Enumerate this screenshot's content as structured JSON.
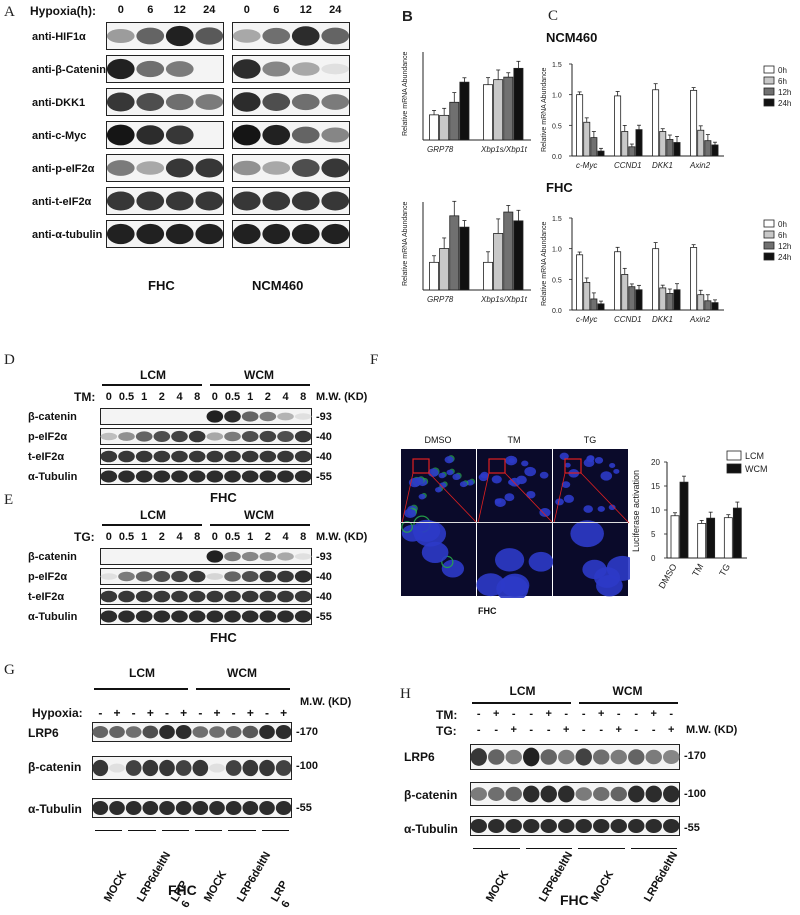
{
  "panel_labels": {
    "a": "A",
    "b": "B",
    "c": "C",
    "d": "D",
    "e": "E",
    "f": "F",
    "g": "G",
    "h": "H"
  },
  "panel_a": {
    "header_label": "Hypoxia(h):",
    "times": [
      "0",
      "6",
      "12",
      "24"
    ],
    "rows": [
      {
        "label": "anti-HIF1α",
        "fhc": [
          0.35,
          0.6,
          0.9,
          0.65
        ],
        "ncm": [
          0.3,
          0.55,
          0.85,
          0.6
        ]
      },
      {
        "label": "anti-β-Catenin",
        "fhc": [
          0.9,
          0.55,
          0.5,
          0.0
        ],
        "ncm": [
          0.85,
          0.45,
          0.3,
          0.05
        ]
      },
      {
        "label": "anti-DKK1",
        "fhc": [
          0.8,
          0.7,
          0.55,
          0.5
        ],
        "ncm": [
          0.85,
          0.7,
          0.55,
          0.5
        ]
      },
      {
        "label": "anti-c-Myc",
        "fhc": [
          0.95,
          0.85,
          0.8,
          0.0
        ],
        "ncm": [
          0.95,
          0.9,
          0.6,
          0.45
        ]
      },
      {
        "label": "anti-p-eIF2α",
        "fhc": [
          0.5,
          0.3,
          0.8,
          0.8
        ],
        "ncm": [
          0.4,
          0.3,
          0.7,
          0.8
        ]
      },
      {
        "label": "anti-t-eIF2α",
        "fhc": [
          0.8,
          0.8,
          0.8,
          0.8
        ],
        "ncm": [
          0.8,
          0.8,
          0.8,
          0.8
        ]
      },
      {
        "label": "anti-α-tubulin",
        "fhc": [
          0.9,
          0.9,
          0.9,
          0.9
        ],
        "ncm": [
          0.9,
          0.9,
          0.9,
          0.9
        ]
      }
    ],
    "cell_fhc": "FHC",
    "cell_ncm": "NCM460"
  },
  "panel_b": {
    "ylabel": "Relative mRNA Abundance",
    "categories": [
      "GRP78",
      "Xbp1s/Xbp1t"
    ],
    "top": [
      [
        1.0,
        0.98,
        1.5,
        2.3
      ],
      [
        2.2,
        2.4,
        2.5,
        2.85
      ]
    ],
    "bottom": [
      [
        1.1,
        1.65,
        2.95,
        2.5
      ],
      [
        1.1,
        2.25,
        3.1,
        2.75
      ]
    ],
    "ymax": 3.5
  },
  "panel_c": {
    "title_top": "NCM460",
    "title_bottom": "FHC",
    "ylabel": "Relative mRNA Abundance",
    "categories": [
      "c-Myc",
      "CCND1",
      "DKK1",
      "Axin2"
    ],
    "legend": [
      "0h",
      "6h",
      "12h",
      "24h"
    ],
    "yticks": [
      "0.0",
      "0.5",
      "1.0",
      "1.5"
    ],
    "top": [
      [
        1.0,
        0.55,
        0.3,
        0.08
      ],
      [
        0.98,
        0.4,
        0.15,
        0.43
      ],
      [
        1.08,
        0.4,
        0.27,
        0.22
      ],
      [
        1.07,
        0.42,
        0.25,
        0.18
      ]
    ],
    "bottom": [
      [
        0.9,
        0.45,
        0.18,
        0.1
      ],
      [
        0.95,
        0.58,
        0.38,
        0.33
      ],
      [
        1.0,
        0.36,
        0.27,
        0.33
      ],
      [
        1.02,
        0.25,
        0.15,
        0.12
      ]
    ]
  },
  "panel_d": {
    "groups": [
      "LCM",
      "WCM"
    ],
    "treatment": "TM:",
    "doses": [
      "0",
      "0.5",
      "1",
      "2",
      "4",
      "8",
      "0",
      "0.5",
      "1",
      "2",
      "4",
      "8"
    ],
    "mw_header": "M.W. (KD)",
    "rows": [
      {
        "label": "β-catenin",
        "mw": "-93",
        "lev": [
          0,
          0,
          0,
          0,
          0,
          0,
          0.9,
          0.85,
          0.6,
          0.5,
          0.25,
          0.05
        ]
      },
      {
        "label": "p-eIF2α",
        "mw": "-40",
        "lev": [
          0.2,
          0.4,
          0.6,
          0.7,
          0.75,
          0.8,
          0.3,
          0.5,
          0.7,
          0.75,
          0.7,
          0.8
        ]
      },
      {
        "label": "t-eIF2α",
        "mw": "-40",
        "lev": [
          0.8,
          0.8,
          0.8,
          0.8,
          0.8,
          0.8,
          0.8,
          0.8,
          0.8,
          0.8,
          0.8,
          0.8
        ]
      },
      {
        "label": "α-Tubulin",
        "mw": "-55",
        "lev": [
          0.85,
          0.85,
          0.85,
          0.85,
          0.85,
          0.85,
          0.85,
          0.85,
          0.85,
          0.85,
          0.85,
          0.85
        ]
      }
    ],
    "cell": "FHC"
  },
  "panel_e": {
    "groups": [
      "LCM",
      "WCM"
    ],
    "treatment": "TG:",
    "doses": [
      "0",
      "0.5",
      "1",
      "2",
      "4",
      "8",
      "0",
      "0.5",
      "1",
      "2",
      "4",
      "8"
    ],
    "mw_header": "M.W. (KD)",
    "rows": [
      {
        "label": "β-catenin",
        "mw": "-93",
        "lev": [
          0,
          0,
          0,
          0,
          0,
          0,
          0.9,
          0.5,
          0.45,
          0.4,
          0.3,
          0.05
        ]
      },
      {
        "label": "p-eIF2α",
        "mw": "-40",
        "lev": [
          0.05,
          0.5,
          0.6,
          0.7,
          0.75,
          0.8,
          0.1,
          0.6,
          0.7,
          0.8,
          0.8,
          0.85
        ]
      },
      {
        "label": "t-eIF2α",
        "mw": "-40",
        "lev": [
          0.8,
          0.8,
          0.8,
          0.8,
          0.8,
          0.8,
          0.8,
          0.8,
          0.8,
          0.8,
          0.8,
          0.8
        ]
      },
      {
        "label": "α-Tubulin",
        "mw": "-55",
        "lev": [
          0.85,
          0.85,
          0.85,
          0.85,
          0.85,
          0.85,
          0.85,
          0.85,
          0.85,
          0.85,
          0.85,
          0.85
        ]
      }
    ],
    "cell": "FHC"
  },
  "panel_f": {
    "image_labels": [
      "DMSO",
      "TM",
      "TG"
    ],
    "caption": "FHC",
    "ylabel": "Luciferase activation",
    "categories": [
      "DMSO",
      "TM",
      "TG"
    ],
    "legend": [
      "LCM",
      "WCM"
    ],
    "yticks": [
      "0",
      "5",
      "10",
      "15",
      "20"
    ],
    "lcm": [
      8.8,
      7.2,
      8.4
    ],
    "wcm": [
      15.8,
      8.3,
      10.4
    ],
    "ymax": 20
  },
  "panel_g": {
    "groups": [
      "LCM",
      "WCM"
    ],
    "treatment": "Hypoxia:",
    "signs": [
      "-",
      "+",
      "-",
      "+",
      "-",
      "+",
      "-",
      "+",
      "-",
      "+",
      "-",
      "+"
    ],
    "mw_header": "M.W. (KD)",
    "rows": [
      {
        "label": "LRP6",
        "mw": "-170",
        "lev": [
          0.6,
          0.6,
          0.55,
          0.7,
          0.85,
          0.85,
          0.55,
          0.55,
          0.6,
          0.65,
          0.85,
          0.85
        ]
      },
      {
        "label": "β-catenin",
        "mw": "-100",
        "lev": [
          0.8,
          0.05,
          0.75,
          0.8,
          0.8,
          0.75,
          0.8,
          0.05,
          0.75,
          0.8,
          0.8,
          0.75
        ]
      },
      {
        "label": "α-Tubulin",
        "mw": "-55",
        "lev": [
          0.85,
          0.85,
          0.85,
          0.85,
          0.85,
          0.85,
          0.85,
          0.85,
          0.85,
          0.85,
          0.85,
          0.85
        ]
      }
    ],
    "conditions": [
      "MOCK",
      "LRP6deltN",
      "LRP\n6",
      "MOCK",
      "LRP6deltN",
      "LRP\n6"
    ],
    "cell": "FHC"
  },
  "panel_h": {
    "groups": [
      "LCM",
      "WCM"
    ],
    "tm_label": "TM:",
    "tg_label": "TG:",
    "tm_signs": [
      "-",
      "+",
      "-",
      "-",
      "+",
      "-",
      "-",
      "+",
      "-",
      "-",
      "+",
      "-"
    ],
    "tg_signs": [
      "-",
      "-",
      "+",
      "-",
      "-",
      "+",
      "-",
      "-",
      "+",
      "-",
      "-",
      "+"
    ],
    "mw_header": "M.W. (KD)",
    "rows": [
      {
        "label": "LRP6",
        "mw": "-170",
        "lev": [
          0.8,
          0.6,
          0.5,
          0.9,
          0.6,
          0.5,
          0.75,
          0.55,
          0.5,
          0.6,
          0.5,
          0.45
        ]
      },
      {
        "label": "β-catenin",
        "mw": "-100",
        "lev": [
          0.5,
          0.55,
          0.6,
          0.85,
          0.85,
          0.85,
          0.5,
          0.55,
          0.6,
          0.85,
          0.85,
          0.85
        ]
      },
      {
        "label": "α-Tubulin",
        "mw": "-55",
        "lev": [
          0.85,
          0.85,
          0.85,
          0.85,
          0.85,
          0.85,
          0.85,
          0.85,
          0.85,
          0.85,
          0.85,
          0.85
        ]
      }
    ],
    "conditions": [
      "MOCK",
      "LRP6deltN",
      "MOCK",
      "LRP6deltN"
    ],
    "cell": "FHC"
  },
  "colors": {
    "bar0": "#ffffff",
    "bar6": "#c8c8c8",
    "bar12": "#707070",
    "bar24": "#111111",
    "lcm": "#ffffff",
    "wcm": "#111111",
    "fluor_bg": "#0a0a2a",
    "nuclei": "#2c3ac8",
    "cytoplasm": "#27a84a",
    "box": "#e02020"
  }
}
